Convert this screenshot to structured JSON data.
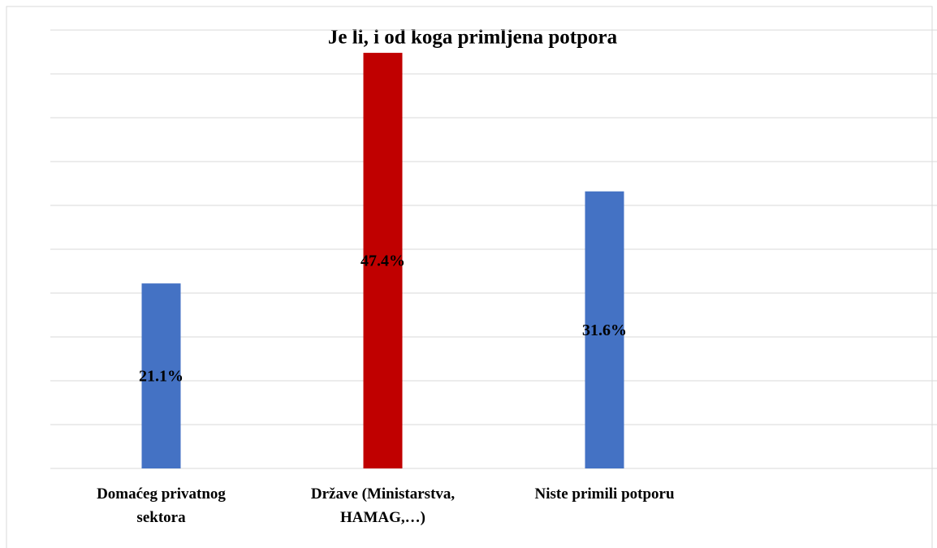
{
  "chart_data": {
    "type": "bar",
    "title": "Je li, i od koga primljena potpora",
    "categories": [
      "Domaćeg privatnog sektora",
      "Države (Ministarstva, HAMAG,…)",
      "Niste primili potporu",
      null
    ],
    "values": [
      21.1,
      47.4,
      31.6,
      null
    ],
    "value_labels": [
      "21.1%",
      "47.4%",
      "31.6%",
      null
    ],
    "colors": [
      "#4472c4",
      "#c00000",
      "#4472c4",
      "#4472c4"
    ],
    "ylim": [
      0,
      50
    ],
    "yticks": [
      0,
      5,
      10,
      15,
      20,
      25,
      30,
      35,
      40,
      45,
      50
    ],
    "grid": true
  }
}
